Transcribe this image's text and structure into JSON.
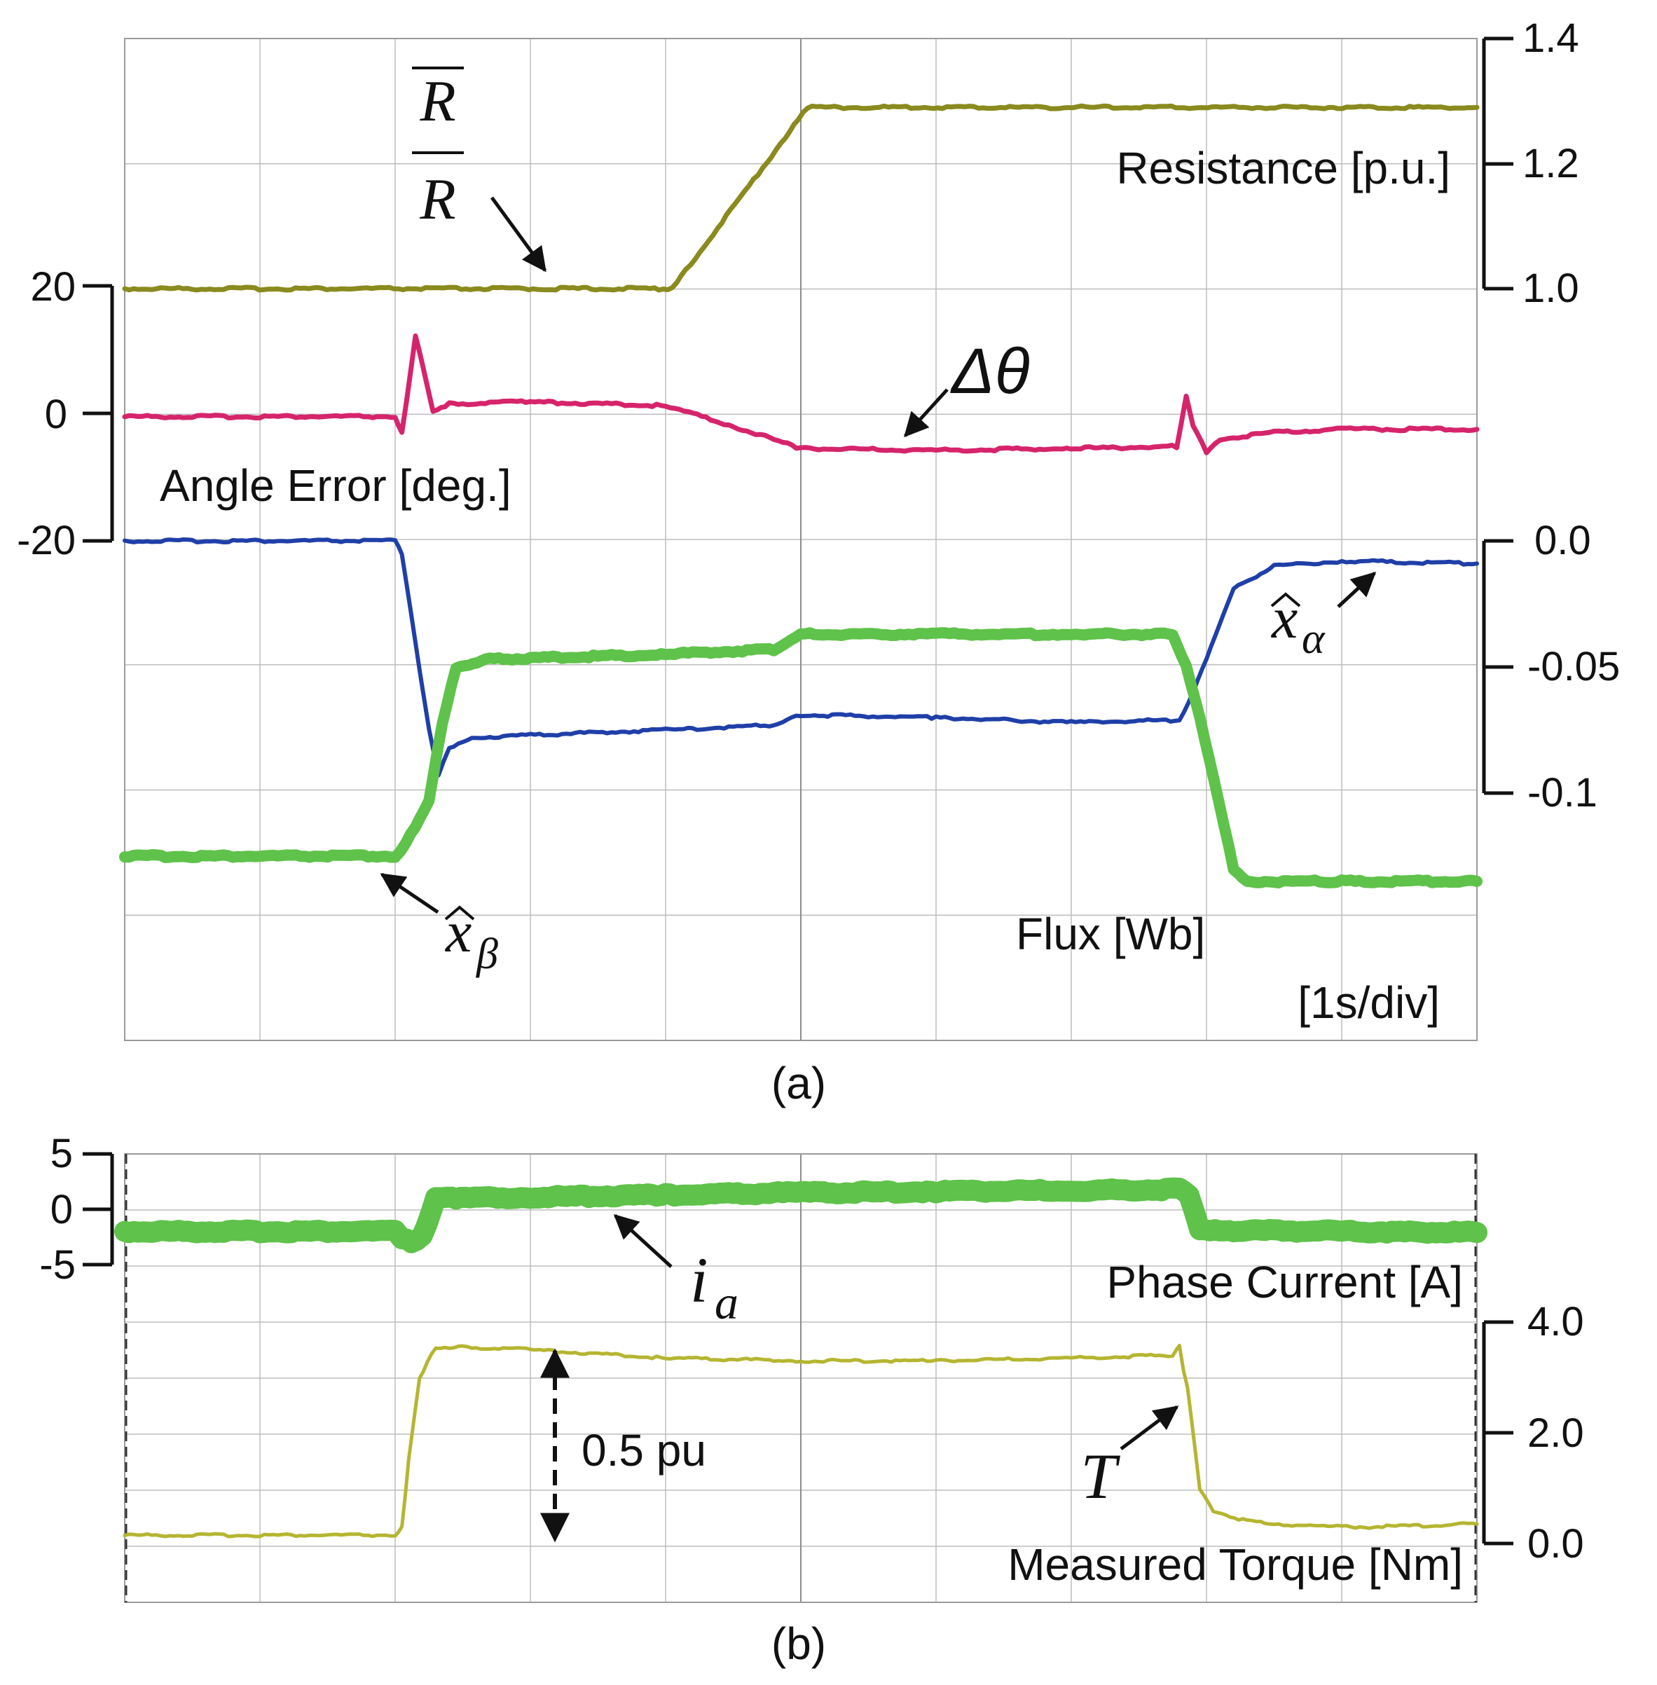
{
  "labels": {
    "panel_a": "(a)",
    "panel_b": "(b)",
    "resistance_unit": "Resistance [p.u.]",
    "angle_unit": "Angle Error [deg.]",
    "flux_unit": "Flux [Wb]",
    "time_scale": "[1s/div]",
    "current_unit": "Phase Current [A]",
    "torque_unit": "Measured Torque [Nm]",
    "pu_annotation": "0.5 pu"
  },
  "symbols": {
    "r_bar": "R",
    "r_nominal": "R",
    "delta_theta": "Δθ",
    "x_alpha_base": "x",
    "x_alpha_sub": "α",
    "x_beta_base": "x",
    "x_beta_sub": "β",
    "i_base": "i",
    "i_sub": "a",
    "torque": "T"
  },
  "colors": {
    "resistance": "#8a8a1e",
    "angle_error": "#d6246b",
    "x_alpha": "#1f3fa8",
    "x_beta": "#5fc24a",
    "phase_current": "#5fc24a",
    "torque": "#b5b532",
    "grid": "#bdbdbd"
  },
  "chart_data": [
    {
      "panel": "(a)",
      "type": "line",
      "x_unit": "s",
      "x_range": [
        0,
        10
      ],
      "divisions": 10,
      "grid": true,
      "axes": {
        "resistance": {
          "label": "Resistance [p.u.]",
          "range": [
            1.0,
            1.4
          ],
          "ticks": [
            "1.0",
            "1.2",
            "1.4"
          ],
          "side": "right-top"
        },
        "angle_error": {
          "label": "Angle Error [deg.]",
          "range": [
            -20,
            20
          ],
          "ticks": [
            "-20",
            "0",
            "20"
          ],
          "side": "left"
        },
        "flux": {
          "label": "Flux [Wb]",
          "range": [
            -0.1,
            0.0
          ],
          "ticks": [
            "-0.1",
            "-0.05",
            "0.0"
          ],
          "side": "right-middle"
        }
      },
      "series": [
        {
          "name": "R (estimated resistance)",
          "axis": "resistance",
          "color_key": "resistance",
          "width": 7,
          "x": [
            0,
            4.05,
            5.05,
            10
          ],
          "y": [
            1.0,
            1.0,
            1.29,
            1.29
          ]
        },
        {
          "name": "Δθ (angle error)",
          "axis": "angle_error",
          "color_key": "angle_error",
          "width": 7,
          "x": [
            0,
            2.0,
            2.05,
            2.15,
            2.2,
            2.28,
            2.4,
            3.0,
            4.0,
            4.5,
            5.0,
            6.0,
            7.0,
            7.78,
            7.85,
            7.9,
            8.0,
            8.1,
            8.5,
            9.0,
            10
          ],
          "y": [
            -0.5,
            -0.5,
            -3,
            12,
            8,
            0.5,
            1.5,
            1.8,
            1.2,
            -2,
            -5.5,
            -5.8,
            -5.5,
            -5.2,
            2.5,
            -2,
            -6,
            -4,
            -3,
            -2.5,
            -2.5
          ]
        },
        {
          "name": "x̂α",
          "axis": "flux",
          "color_key": "x_alpha",
          "width": 6,
          "x": [
            0,
            2.0,
            2.05,
            2.15,
            2.25,
            2.32,
            2.4,
            2.6,
            3.0,
            4.0,
            4.8,
            5.0,
            6.0,
            7.0,
            7.8,
            7.9,
            8.2,
            8.5,
            9.0,
            10
          ],
          "y": [
            0.0,
            0.0,
            -0.005,
            -0.04,
            -0.075,
            -0.093,
            -0.082,
            -0.078,
            -0.077,
            -0.075,
            -0.073,
            -0.069,
            -0.07,
            -0.072,
            -0.071,
            -0.06,
            -0.019,
            -0.01,
            -0.008,
            -0.009
          ]
        },
        {
          "name": "x̂β",
          "axis": "flux",
          "color_key": "x_beta",
          "width": 16,
          "x": [
            0,
            2.0,
            2.08,
            2.25,
            2.35,
            2.45,
            2.7,
            3.0,
            4.0,
            4.8,
            5.0,
            6.0,
            7.0,
            7.75,
            7.85,
            7.95,
            8.2,
            8.3,
            9.0,
            10
          ],
          "y": [
            -0.125,
            -0.125,
            -0.12,
            -0.103,
            -0.072,
            -0.05,
            -0.047,
            -0.0465,
            -0.045,
            -0.043,
            -0.037,
            -0.037,
            -0.037,
            -0.037,
            -0.05,
            -0.07,
            -0.13,
            -0.135,
            -0.135,
            -0.135
          ]
        }
      ]
    },
    {
      "panel": "(b)",
      "type": "line",
      "x_unit": "s",
      "x_range": [
        0,
        10
      ],
      "divisions": 10,
      "grid": true,
      "axes": {
        "current": {
          "label": "Phase Current [A]",
          "range": [
            -5,
            5
          ],
          "ticks": [
            "-5",
            "0",
            "5"
          ],
          "side": "left-top"
        },
        "torque": {
          "label": "Measured Torque [Nm]",
          "range": [
            0.0,
            4.0
          ],
          "ticks": [
            "0.0",
            "2.0",
            "4.0"
          ],
          "side": "right-bottom"
        }
      },
      "series": [
        {
          "name": "ia (phase current)",
          "axis": "current",
          "color_key": "phase_current",
          "width": 30,
          "x": [
            0,
            2.0,
            2.05,
            2.12,
            2.2,
            2.3,
            2.45,
            3.0,
            4.0,
            5.0,
            6.0,
            7.0,
            7.8,
            7.87,
            7.95,
            8.1,
            9.0,
            10
          ],
          "y": [
            -2,
            -2,
            -2.6,
            -3.0,
            -2.5,
            1.0,
            1.0,
            1.1,
            1.3,
            1.5,
            1.6,
            1.7,
            1.8,
            1.2,
            -1.8,
            -1.9,
            -2.0,
            -2.1
          ]
        },
        {
          "name": "T (measured torque)",
          "axis": "torque",
          "color_key": "torque",
          "width": 5,
          "x": [
            0,
            2.0,
            2.05,
            2.1,
            2.18,
            2.3,
            2.5,
            3.0,
            4.0,
            5.0,
            6.0,
            7.0,
            7.75,
            7.8,
            7.83,
            7.86,
            7.95,
            8.05,
            8.3,
            8.8,
            9.2,
            10
          ],
          "y": [
            0.15,
            0.15,
            0.3,
            1.5,
            3.0,
            3.55,
            3.55,
            3.5,
            3.35,
            3.3,
            3.3,
            3.35,
            3.4,
            3.6,
            3.1,
            2.8,
            1.0,
            0.6,
            0.4,
            0.3,
            0.3,
            0.35
          ]
        }
      ]
    }
  ]
}
